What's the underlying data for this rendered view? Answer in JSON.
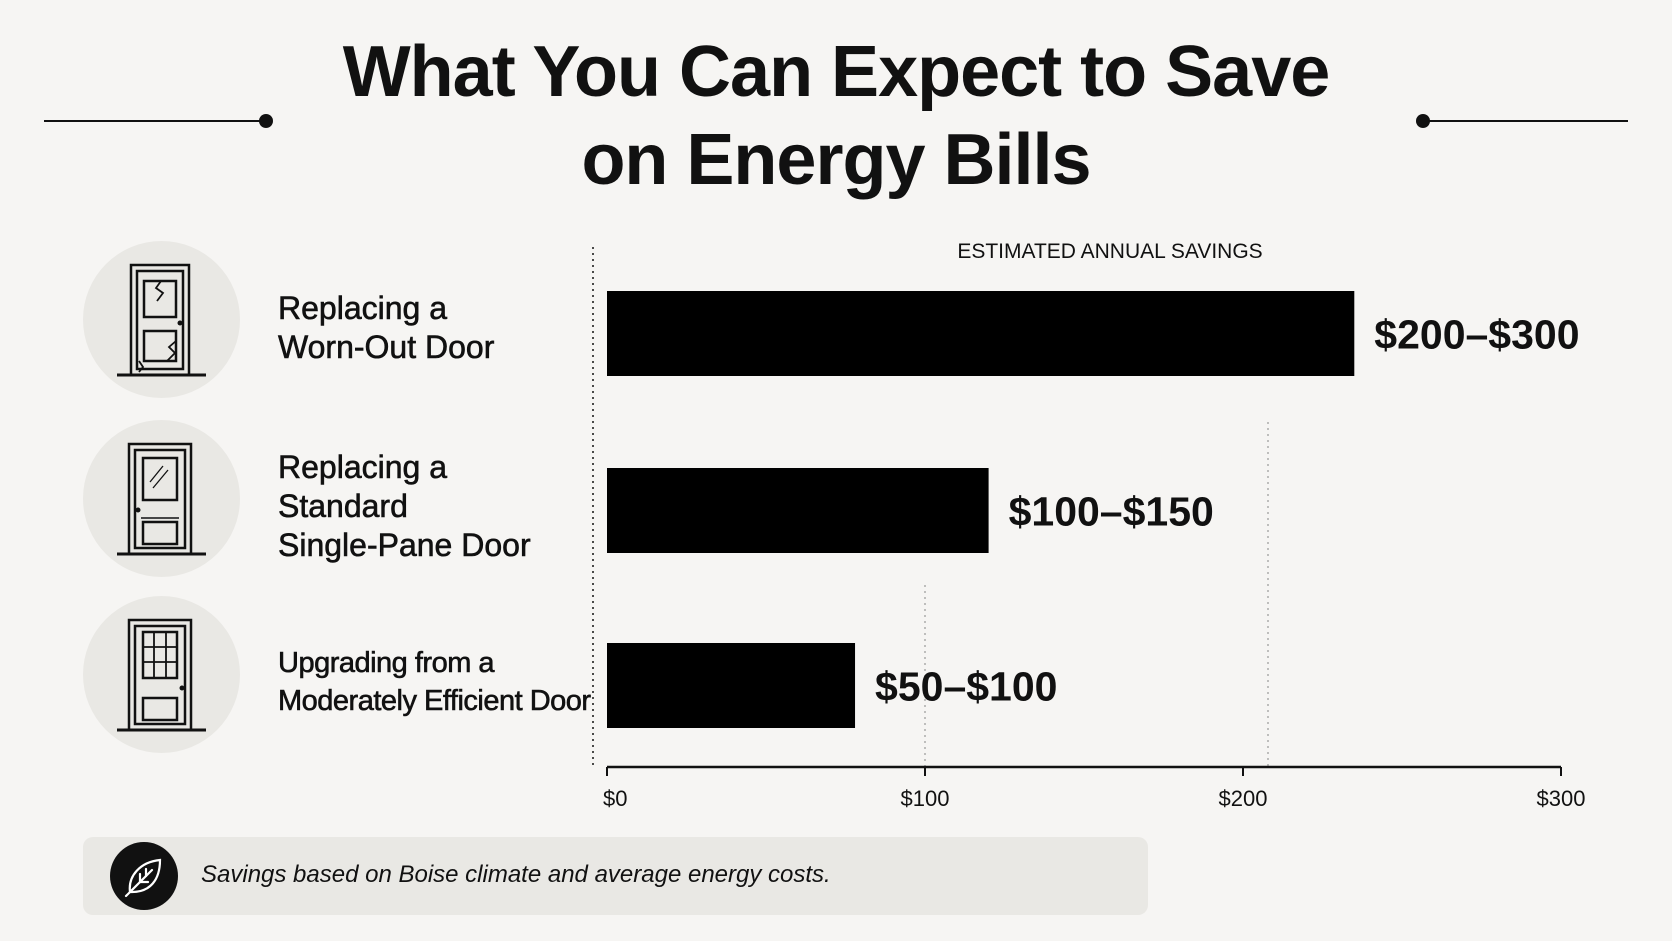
{
  "title_line1": "What You Can Expect to Save",
  "title_line2": "on Energy Bills",
  "rows": [
    {
      "icon": "cracked-door-icon",
      "label_lines": [
        "Replacing a",
        "Worn-Out Door"
      ]
    },
    {
      "icon": "single-pane-door-icon",
      "label_lines": [
        "Replacing a",
        "Standard",
        "Single-Pane Door"
      ]
    },
    {
      "icon": "grid-window-door-icon",
      "label_lines": [
        "Upgrading from a",
        "Moderately Efficient Door"
      ]
    }
  ],
  "chart_data": {
    "type": "bar",
    "orientation": "horizontal",
    "title": "ESTIMATED ANNUAL SAVINGS",
    "categories": [
      "Replacing a Worn-Out Door",
      "Replacing a Standard Single-Pane Door",
      "Upgrading from a Moderately Efficient Door"
    ],
    "values": [
      235,
      120,
      78
    ],
    "data_labels": [
      "$200–$300",
      "$100–$150",
      "$50–$100"
    ],
    "xlim": [
      0,
      300
    ],
    "xticks": [
      0,
      100,
      200,
      300
    ],
    "xtick_labels": [
      "$0",
      "$100",
      "$200",
      "$300"
    ],
    "bar_color": "#000000",
    "grid": "dotted vertical"
  },
  "footer": {
    "icon": "leaf-icon",
    "text": "Savings based on Boise climate and average energy costs."
  }
}
